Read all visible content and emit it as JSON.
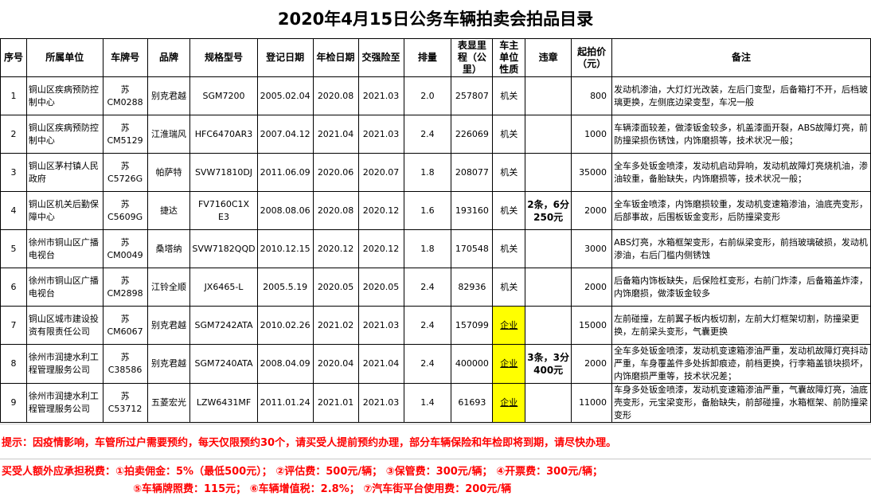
{
  "title": "2020年4月15日公务车辆拍卖会拍品目录",
  "headers": [
    "序号",
    "所属单位",
    "车牌号",
    "品牌",
    "规格型号",
    "登记日期",
    "年检日期",
    "交强险至",
    "排量",
    "表显里程（公里）",
    "车主单位性质",
    "违章",
    "起拍价（元）",
    "备注"
  ],
  "rows": [
    [
      "1",
      "铜山区疾病预防控制中心",
      "苏CM0288",
      "别克君越",
      "SGM7200",
      "2005.02.04",
      "2020.08",
      "2021.03",
      "2.0",
      "257807",
      "机关",
      "",
      "800",
      "发动机渗油，大灯灯光改装，左后门变型，后备箱打不开，后档玻璃更换，左侧底边梁变型，车况一般"
    ],
    [
      "2",
      "铜山区疾病预防控制中心",
      "苏CM5129",
      "江淮瑞风",
      "HFC6470AR3",
      "2007.04.12",
      "2021.04",
      "2021.03",
      "2.4",
      "226069",
      "机关",
      "",
      "1000",
      "车辆漆面较差，做漆钣金较多，机盖漆面开裂，ABS故障灯亮，前防撞梁损伤锈蚀，内饰磨损等，技术状况一般；"
    ],
    [
      "3",
      "铜山区茅村镇人民政府",
      "苏C5726G",
      "帕萨特",
      "SVW71810DJ",
      "2011.06.09",
      "2020.06",
      "2020.07",
      "1.8",
      "208077",
      "机关",
      "",
      "35000",
      "全车多处钣金喷漆，发动机启动异响，发动机故障灯亮烧机油，渗油较重，备胎缺失，内饰磨损等，技术状况一般；"
    ],
    [
      "4",
      "铜山区机关后勤保障中心",
      "苏C5609G",
      "捷达",
      "FV7160C1X E3",
      "2008.08.06",
      "2020.08",
      "2020.12",
      "1.6",
      "193160",
      "机关",
      "2条，6分 250元",
      "2000",
      "全车钣金喷漆，内饰磨损较重，发动机变速箱渗油，油底壳变形，后部事故，后围板钣金变形，后防撞梁变形"
    ],
    [
      "5",
      "徐州市铜山区广播电视台",
      "苏CM0049",
      "桑塔纳",
      "SVW7182QQD",
      "2010.12.15",
      "2020.12",
      "2020.12",
      "1.8",
      "170548",
      "机关",
      "",
      "3000",
      "ABS灯亮，水箱框架变形，右前纵梁变形，前挡玻璃破损，发动机渗油，右后门槛内侧锈蚀"
    ],
    [
      "6",
      "徐州市铜山区广播电视台",
      "苏CM2898",
      "江铃全顺",
      "JX6465-L",
      "2005.5.19",
      "2020.05",
      "2020.05",
      "2.4",
      "82936",
      "机关",
      "",
      "2000",
      "后备箱内饰板缺失，后保险杠变形，右前门炸漆，后备箱盖炸漆，内饰磨损，做漆钣金较多"
    ],
    [
      "7",
      "铜山区城市建设投资有限责任公司",
      "苏CM6067",
      "别克君越",
      "SGM7242ATA",
      "2010.02.26",
      "2021.02",
      "2021.03",
      "2.4",
      "157099",
      "企业",
      "",
      "15000",
      "左前碰撞，左前翼子板内板切割，左前大灯框架切割，防撞梁更换，左前梁头变形，气囊更换"
    ],
    [
      "8",
      "徐州市润捷水利工程管理服务公司",
      "苏C38586",
      "别克君越",
      "SGM7240ATA",
      "2008.04.09",
      "2020.04",
      "2021.04",
      "2.4",
      "400000",
      "企业",
      "3条，3分 400元",
      "2000",
      "全车多处钣金喷漆，发动机变速箱渗油严重，发动机故障灯亮抖动严重，车身覆盖件多处拆卸痕迹，前档更换，行李箱盖锁块损坏，内饰磨损严重等，技术状况差；"
    ],
    [
      "9",
      "徐州市润捷水利工程管理服务公司",
      "苏C53712",
      "五菱宏光",
      "LZW6431MF",
      "2011.01.24",
      "2021.01",
      "2021.03",
      "1.4",
      "61693",
      "企业",
      "",
      "11000",
      "车身多处钣金喷漆，发动机变速箱渗油严重，气囊故障灯亮，油底壳变形，元宝梁变形，备胎缺失，前部碰撞，水箱框架、前防撞梁变形"
    ]
  ],
  "hint": "提示：因疫情影响，车管所过户需要预约，每天仅限预约30个，请买受人提前预约办理，部分车辆保险和年检即将到期，请尽快办理。",
  "fees_line1": "买受人额外应承担税费：①拍卖佣金：5%（最低500元）；   ②评估费：500元/辆；    ③保管费：300元/辆；  ④开票费：300元/辆；",
  "fees_line2": "⑤车辆牌照费：115元；   ⑥车辆增值税：2.8%；   ⑦汽车街平台使用费：200元/辆",
  "colors": {
    "enterprise_highlight": "#ffff00",
    "notice_text": "#ff0000"
  }
}
